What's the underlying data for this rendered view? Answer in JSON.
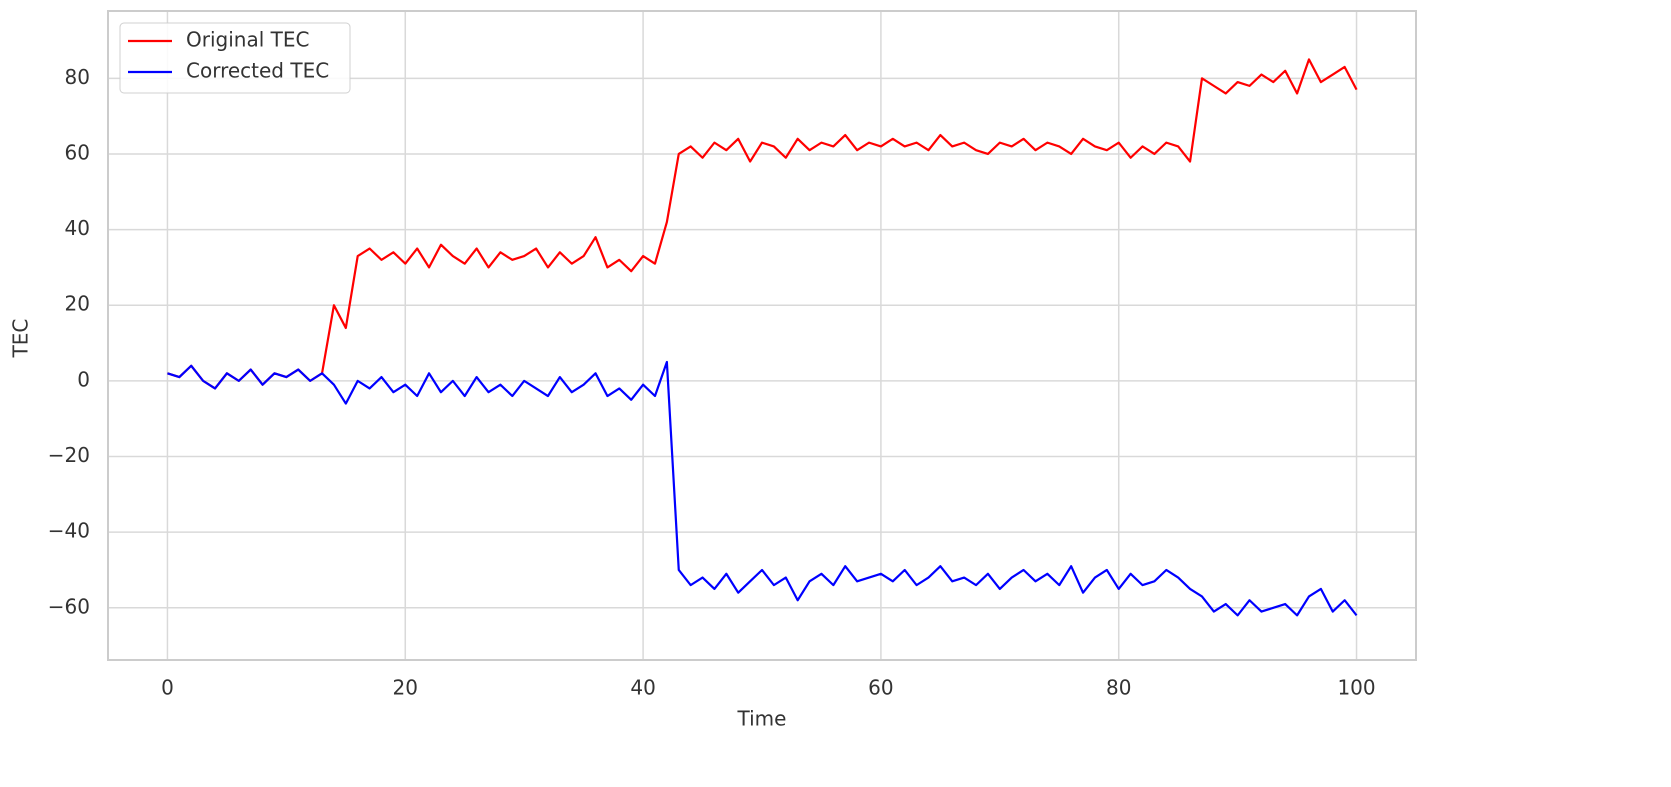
{
  "chart_data": {
    "type": "line",
    "xlabel": "Time",
    "ylabel": "TEC",
    "x": [
      0,
      1,
      2,
      3,
      4,
      5,
      6,
      7,
      8,
      9,
      10,
      11,
      12,
      13,
      14,
      15,
      16,
      17,
      18,
      19,
      20,
      21,
      22,
      23,
      24,
      25,
      26,
      27,
      28,
      29,
      30,
      31,
      32,
      33,
      34,
      35,
      36,
      37,
      38,
      39,
      40,
      41,
      42,
      43,
      44,
      45,
      46,
      47,
      48,
      49,
      50,
      51,
      52,
      53,
      54,
      55,
      56,
      57,
      58,
      59,
      60,
      61,
      62,
      63,
      64,
      65,
      66,
      67,
      68,
      69,
      70,
      71,
      72,
      73,
      74,
      75,
      76,
      77,
      78,
      79,
      80,
      81,
      82,
      83,
      84,
      85,
      86,
      87,
      88,
      89,
      90,
      91,
      92,
      93,
      94,
      95,
      96,
      97,
      98,
      99,
      100
    ],
    "series": [
      {
        "name": "Original TEC",
        "color": "#ff0000",
        "values": [
          2,
          1,
          4,
          0,
          -2,
          2,
          0,
          3,
          -1,
          2,
          1,
          3,
          0,
          2,
          20,
          14,
          33,
          35,
          32,
          34,
          31,
          35,
          30,
          36,
          33,
          31,
          35,
          30,
          34,
          32,
          33,
          35,
          30,
          34,
          31,
          33,
          38,
          30,
          32,
          29,
          33,
          31,
          42,
          60,
          62,
          59,
          63,
          61,
          64,
          58,
          63,
          62,
          59,
          64,
          61,
          63,
          62,
          65,
          61,
          63,
          62,
          64,
          62,
          63,
          61,
          65,
          62,
          63,
          61,
          60,
          63,
          62,
          64,
          61,
          63,
          62,
          60,
          64,
          62,
          61,
          63,
          59,
          62,
          60,
          63,
          62,
          58,
          80,
          78,
          76,
          79,
          78,
          81,
          79,
          82,
          76,
          85,
          79,
          81,
          83,
          77
        ]
      },
      {
        "name": "Corrected TEC",
        "color": "#0000ff",
        "values": [
          2,
          1,
          4,
          0,
          -2,
          2,
          0,
          3,
          -1,
          2,
          1,
          3,
          0,
          2,
          -1,
          -6,
          0,
          -2,
          1,
          -3,
          -1,
          -4,
          2,
          -3,
          0,
          -4,
          1,
          -3,
          -1,
          -4,
          0,
          -2,
          -4,
          1,
          -3,
          -1,
          2,
          -4,
          -2,
          -5,
          -1,
          -4,
          5,
          -50,
          -54,
          -52,
          -55,
          -51,
          -56,
          -53,
          -50,
          -54,
          -52,
          -58,
          -53,
          -51,
          -54,
          -49,
          -53,
          -52,
          -51,
          -53,
          -50,
          -54,
          -52,
          -49,
          -53,
          -52,
          -54,
          -51,
          -55,
          -52,
          -50,
          -53,
          -51,
          -54,
          -49,
          -56,
          -52,
          -50,
          -55,
          -51,
          -54,
          -53,
          -50,
          -52,
          -55,
          -57,
          -61,
          -59,
          -62,
          -58,
          -61,
          -60,
          -59,
          -62,
          -57,
          -55,
          -61,
          -58,
          -62
        ]
      }
    ],
    "xlim": [
      -5,
      105
    ],
    "ylim": [
      -73.8,
      97.8
    ],
    "xticks": [
      0,
      20,
      40,
      60,
      80,
      100
    ],
    "yticks": [
      {
        "value": -60,
        "label": "−60"
      },
      {
        "value": -40,
        "label": "−40"
      },
      {
        "value": -20,
        "label": "−20"
      },
      0,
      20,
      40,
      60,
      80
    ],
    "grid": true,
    "legend": "upper-left"
  }
}
